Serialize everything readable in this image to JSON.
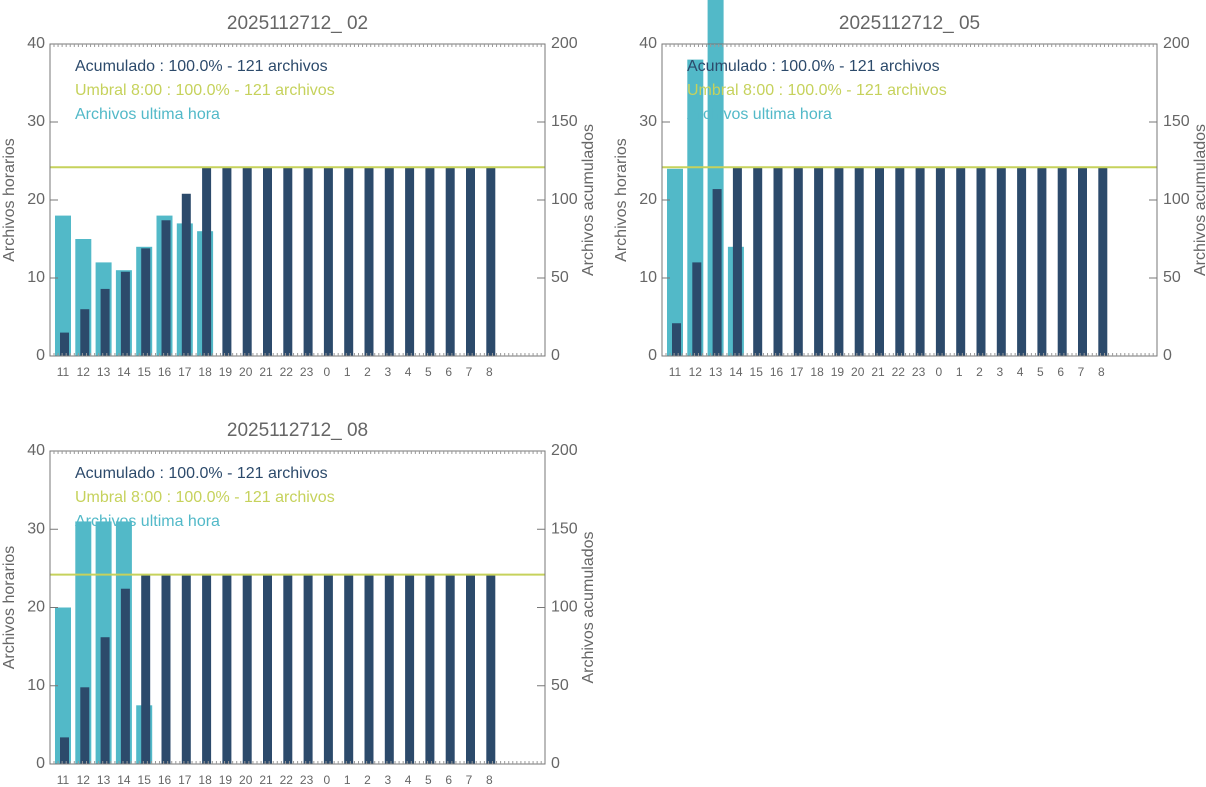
{
  "chart_data": [
    {
      "type": "bar",
      "title": "2025112712_ 02",
      "ylabel": "Archivos horarios",
      "y2label": "Archivos acumulados",
      "categories": [
        "11",
        "12",
        "13",
        "14",
        "15",
        "16",
        "17",
        "18",
        "19",
        "20",
        "21",
        "22",
        "23",
        "0",
        "1",
        "2",
        "3",
        "4",
        "5",
        "6",
        "7",
        "8"
      ],
      "series": [
        {
          "name": "Acumulado : 100.0% - 121 archivos",
          "color": "#2c4a6b",
          "axis": "y2",
          "values": [
            15,
            30,
            43,
            54,
            69,
            87,
            104,
            121,
            121,
            121,
            121,
            121,
            121,
            121,
            121,
            121,
            121,
            121,
            121,
            121,
            121,
            121
          ]
        },
        {
          "name": "Archivos ultima hora",
          "color": "#52b9c8",
          "values": [
            18,
            15,
            12,
            11,
            14,
            18,
            17,
            16,
            0,
            0,
            0,
            0,
            0,
            0,
            0,
            0,
            0,
            0,
            0,
            0,
            0,
            0
          ]
        }
      ],
      "threshold": {
        "label": "Umbral 8:00 : 100.0% - 121 archivos",
        "value": 121,
        "color": "#c6d25c"
      },
      "ylim": [
        0,
        40
      ],
      "yticks": [
        0,
        10,
        20,
        30,
        40
      ],
      "y2lim": [
        0,
        200
      ],
      "y2ticks": [
        0,
        50,
        100,
        150,
        200
      ]
    },
    {
      "type": "bar",
      "title": "2025112712_ 05",
      "ylabel": "Archivos horarios",
      "y2label": "Archivos acumulados",
      "categories": [
        "11",
        "12",
        "13",
        "14",
        "15",
        "16",
        "17",
        "18",
        "19",
        "20",
        "21",
        "22",
        "23",
        "0",
        "1",
        "2",
        "3",
        "4",
        "5",
        "6",
        "7",
        "8"
      ],
      "series": [
        {
          "name": "Acumulado : 100.0% - 121 archivos",
          "color": "#2c4a6b",
          "axis": "y2",
          "values": [
            21,
            60,
            107,
            121,
            121,
            121,
            121,
            121,
            121,
            121,
            121,
            121,
            121,
            121,
            121,
            121,
            121,
            121,
            121,
            121,
            121,
            121
          ]
        },
        {
          "name": "Archivos ultima hora",
          "color": "#52b9c8",
          "values": [
            24,
            38,
            46,
            14,
            0,
            0,
            0,
            0,
            0,
            0,
            0,
            0,
            0,
            0,
            0,
            0,
            0,
            0,
            0,
            0,
            0,
            0
          ]
        }
      ],
      "threshold": {
        "label": "Umbral 8:00 : 100.0% - 121 archivos",
        "value": 121,
        "color": "#c6d25c"
      },
      "ylim": [
        0,
        40
      ],
      "yticks": [
        0,
        10,
        20,
        30,
        40
      ],
      "y2lim": [
        0,
        200
      ],
      "y2ticks": [
        0,
        50,
        100,
        150,
        200
      ]
    },
    {
      "type": "bar",
      "title": "2025112712_ 08",
      "ylabel": "Archivos horarios",
      "y2label": "Archivos acumulados",
      "categories": [
        "11",
        "12",
        "13",
        "14",
        "15",
        "16",
        "17",
        "18",
        "19",
        "20",
        "21",
        "22",
        "23",
        "0",
        "1",
        "2",
        "3",
        "4",
        "5",
        "6",
        "7",
        "8"
      ],
      "series": [
        {
          "name": "Acumulado : 100.0% - 121 archivos",
          "color": "#2c4a6b",
          "axis": "y2",
          "values": [
            17,
            49,
            81,
            112,
            121,
            121,
            121,
            121,
            121,
            121,
            121,
            121,
            121,
            121,
            121,
            121,
            121,
            121,
            121,
            121,
            121,
            121
          ]
        },
        {
          "name": "Archivos ultima hora",
          "color": "#52b9c8",
          "values": [
            20,
            31,
            31,
            31,
            7.5,
            0,
            0,
            0,
            0,
            0,
            0,
            0,
            0,
            0,
            0,
            0,
            0,
            0,
            0,
            0,
            0,
            0
          ]
        }
      ],
      "threshold": {
        "label": "Umbral 8:00 : 100.0% - 121 archivos",
        "value": 121,
        "color": "#c6d25c"
      },
      "ylim": [
        0,
        40
      ],
      "yticks": [
        0,
        10,
        20,
        30,
        40
      ],
      "y2lim": [
        0,
        200
      ],
      "y2ticks": [
        0,
        50,
        100,
        150,
        200
      ]
    }
  ]
}
